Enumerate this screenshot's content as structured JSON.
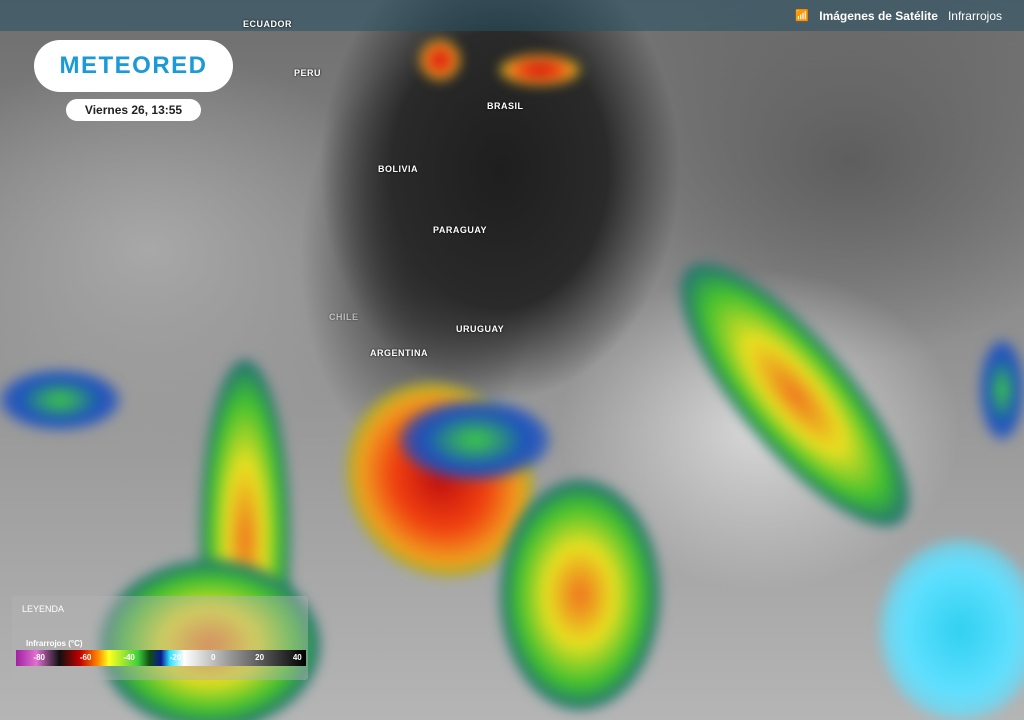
{
  "header": {
    "section_title": "Imágenes de Satélite",
    "layer": "Infrarrojos",
    "icon": "satellite-signal-icon"
  },
  "logo": {
    "text": "METEORED"
  },
  "datetime": "Viernes 26, 13:55",
  "countries": [
    "ECUADOR",
    "PERU",
    "BRASIL",
    "BOLIVIA",
    "PARAGUAY",
    "URUGUAY",
    "ARGENTINA",
    "CHILE"
  ],
  "legend": {
    "title": "LEYENDA",
    "scale_title": "Infrarrojos (°C)",
    "ticks": [
      "-80",
      "-60",
      "-40",
      "-20",
      "0",
      "20",
      "40"
    ],
    "colors": [
      "#a020a0",
      "#101010",
      "#c00000",
      "#ffff20",
      "#40d040",
      "#0a1a90",
      "#30e0ff",
      "#ffffff",
      "#000000"
    ]
  }
}
